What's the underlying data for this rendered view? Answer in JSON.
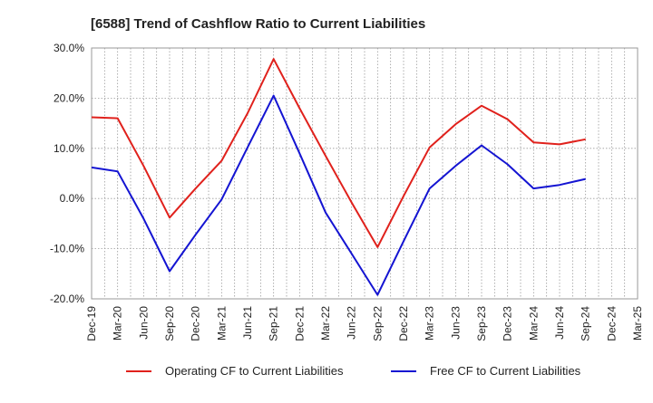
{
  "chart_data": {
    "type": "line",
    "title": "[6588]  Trend of Cashflow Ratio to Current Liabilities",
    "xlabel": "",
    "ylabel": "",
    "categories": [
      "Dec-19",
      "Mar-20",
      "Jun-20",
      "Sep-20",
      "Dec-20",
      "Mar-21",
      "Jun-21",
      "Sep-21",
      "Dec-21",
      "Mar-22",
      "Jun-22",
      "Sep-22",
      "Dec-22",
      "Mar-23",
      "Jun-23",
      "Sep-23",
      "Dec-23",
      "Mar-24",
      "Jun-24",
      "Sep-24",
      "Dec-24",
      "Mar-25"
    ],
    "ylim": [
      -20,
      30
    ],
    "yticks": [
      -20,
      -10,
      0,
      10,
      20,
      30
    ],
    "ytick_labels": [
      "-20.0%",
      "-10.0%",
      "0.0%",
      "10.0%",
      "20.0%",
      "30.0%"
    ],
    "grid": true,
    "legend_position": "bottom",
    "series": [
      {
        "name": "Operating CF to Current Liabilities",
        "color": "#e0211c",
        "values": [
          16.2,
          16.0,
          6.5,
          -3.8,
          2.0,
          7.5,
          17.0,
          27.8,
          18.0,
          8.5,
          -0.8,
          -9.7,
          0.5,
          10.2,
          14.8,
          18.5,
          15.8,
          11.2,
          10.8,
          11.8,
          null,
          null
        ]
      },
      {
        "name": "Free CF to Current Liabilities",
        "color": "#1414d2",
        "values": [
          6.2,
          5.4,
          -4.0,
          -14.5,
          -7.2,
          -0.2,
          10.2,
          20.5,
          9.0,
          -2.8,
          -11.0,
          -19.2,
          -8.5,
          2.0,
          6.5,
          10.6,
          6.8,
          2.0,
          2.7,
          3.9,
          null,
          null
        ]
      }
    ]
  }
}
